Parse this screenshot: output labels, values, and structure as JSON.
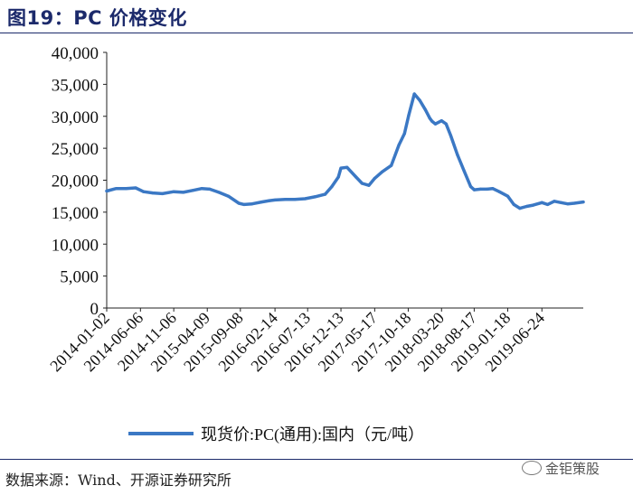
{
  "header": {
    "title": "图19：PC 价格变化"
  },
  "footer": {
    "source": "数据来源：Wind、开源证券研究所",
    "watermark": "金钜策股"
  },
  "chart_data": {
    "type": "line",
    "ylim": [
      0,
      40000
    ],
    "yticks": [
      "40,000",
      "35,000",
      "30,000",
      "25,000",
      "20,000",
      "15,000",
      "10,000",
      "5,000",
      "0"
    ],
    "ytick_values": [
      40000,
      35000,
      30000,
      25000,
      20000,
      15000,
      10000,
      5000,
      0
    ],
    "xticks": [
      "2014-01-02",
      "2014-06-06",
      "2014-11-06",
      "2015-04-09",
      "2015-09-08",
      "2016-02-14",
      "2016-07-13",
      "2016-12-13",
      "2017-05-17",
      "2017-10-18",
      "2018-03-20",
      "2018-08-17",
      "2019-01-18",
      "2019-06-24"
    ],
    "legend": "现货价:PC(通用):国内（元/吨）",
    "line_color": "#3b78c4",
    "series": [
      {
        "name": "现货价:PC(通用):国内（元/吨）",
        "x": [
          "2014-01-02",
          "2014-02-15",
          "2014-04-01",
          "2014-05-15",
          "2014-06-20",
          "2014-08-01",
          "2014-09-15",
          "2014-11-06",
          "2014-12-20",
          "2015-02-01",
          "2015-03-15",
          "2015-04-20",
          "2015-06-01",
          "2015-07-15",
          "2015-09-01",
          "2015-09-25",
          "2015-11-01",
          "2015-12-15",
          "2016-01-20",
          "2016-02-14",
          "2016-04-01",
          "2016-05-15",
          "2016-07-01",
          "2016-08-15",
          "2016-10-01",
          "2016-11-01",
          "2016-12-01",
          "2016-12-13",
          "2017-01-10",
          "2017-02-20",
          "2017-03-20",
          "2017-04-20",
          "2017-05-17",
          "2017-06-20",
          "2017-08-01",
          "2017-09-05",
          "2017-10-01",
          "2017-10-20",
          "2017-11-15",
          "2017-12-10",
          "2018-01-05",
          "2018-01-25",
          "2018-02-05",
          "2018-02-20",
          "2018-03-20",
          "2018-04-10",
          "2018-05-01",
          "2018-06-01",
          "2018-07-01",
          "2018-08-01",
          "2018-08-17",
          "2018-09-15",
          "2018-10-15",
          "2018-11-10",
          "2018-12-10",
          "2019-01-18",
          "2019-02-15",
          "2019-03-15",
          "2019-04-15",
          "2019-05-15",
          "2019-06-24",
          "2019-07-20",
          "2019-08-20",
          "2019-09-20",
          "2019-10-20",
          "2019-11-20",
          "2019-12-31"
        ],
        "values": [
          18300,
          18700,
          18700,
          18800,
          18200,
          18000,
          17900,
          18200,
          18100,
          18400,
          18700,
          18600,
          18100,
          17500,
          16400,
          16200,
          16300,
          16600,
          16800,
          16900,
          17000,
          17000,
          17100,
          17400,
          17800,
          19000,
          20500,
          21900,
          22000,
          20500,
          19500,
          19200,
          20300,
          21300,
          22300,
          25500,
          27300,
          30100,
          33500,
          32500,
          31000,
          29700,
          29200,
          28800,
          29300,
          28800,
          27000,
          24000,
          21500,
          19000,
          18500,
          18600,
          18600,
          18700,
          18200,
          17500,
          16200,
          15600,
          15900,
          16100,
          16500,
          16200,
          16700,
          16500,
          16300,
          16400,
          16600
        ]
      }
    ]
  }
}
